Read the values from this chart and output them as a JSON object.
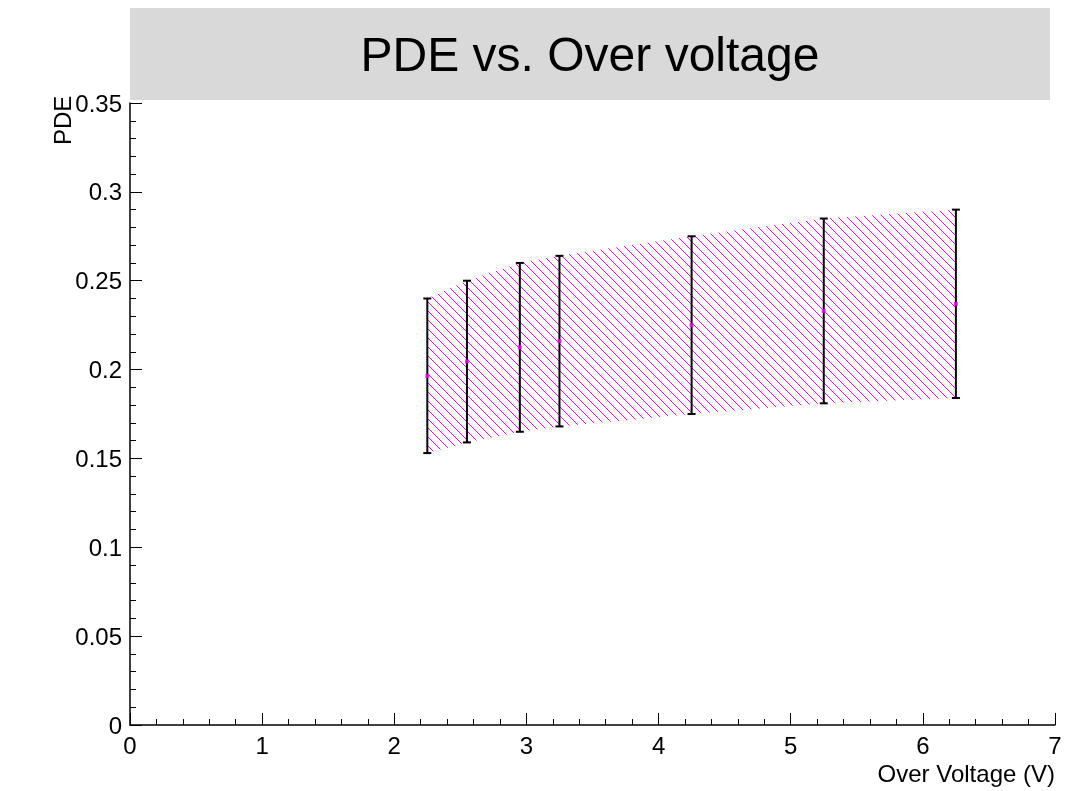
{
  "chart_data": {
    "type": "scatter",
    "marker": "square",
    "title": "PDE vs. Over voltage",
    "xlabel": "Over Voltage (V)",
    "ylabel": "PDE",
    "x": [
      2.25,
      2.55,
      2.95,
      3.25,
      4.25,
      5.25,
      6.25
    ],
    "series": [
      {
        "color": "#ff00ff",
        "values": [
          0.1965,
          0.2045,
          0.2125,
          0.216,
          0.225,
          0.233,
          0.237
        ],
        "errors": [
          [
            0.153,
            0.24
          ],
          [
            0.159,
            0.25
          ],
          [
            0.165,
            0.26
          ],
          [
            0.168,
            0.264
          ],
          [
            0.175,
            0.275
          ],
          [
            0.181,
            0.285
          ],
          [
            0.184,
            0.29
          ]
        ],
        "lower": [
          0.153,
          0.159,
          0.165,
          0.168,
          0.175,
          0.181,
          0.184
        ],
        "upper": [
          0.24,
          0.25,
          0.26,
          0.264,
          0.275,
          0.285,
          0.29
        ]
      }
    ],
    "xlim": [
      0,
      7
    ],
    "xticks": [
      0,
      1,
      2,
      3,
      4,
      5,
      6,
      7
    ],
    "ylim": [
      0,
      0.35
    ],
    "yticks": [
      0,
      0.05,
      0.1,
      0.15,
      0.2,
      0.25,
      0.3,
      0.35
    ],
    "grid": false
  }
}
